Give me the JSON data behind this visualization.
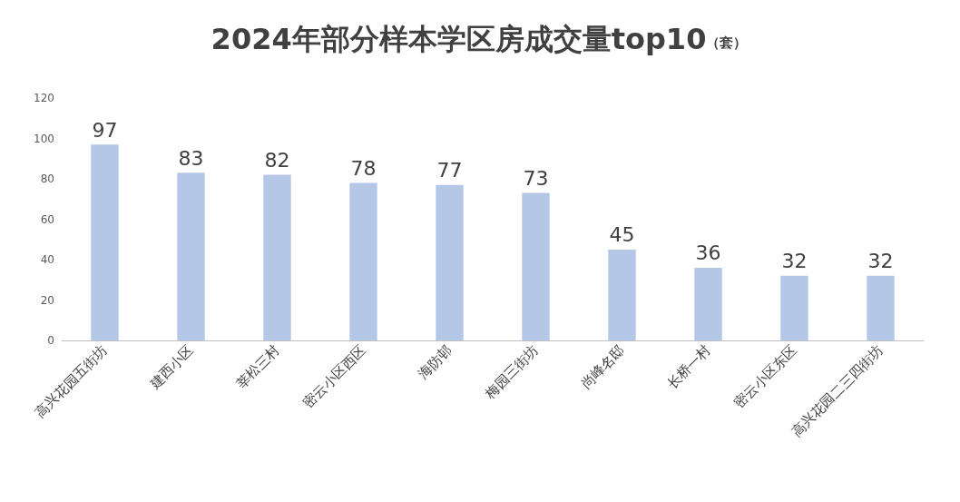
{
  "chart_data": {
    "type": "bar",
    "title": "2024年部分样本学区房成交量top10",
    "subtitle": "（套）",
    "categories": [
      "高兴花园五街坊",
      "建西小区",
      "莘松三村",
      "密云小区西区",
      "海防邨",
      "梅园三街坊",
      "尚峰名邸",
      "长桥一村",
      "密云小区东区",
      "高兴花园二三四街坊"
    ],
    "values": [
      97,
      83,
      82,
      78,
      77,
      73,
      45,
      36,
      32,
      32
    ],
    "color": "#b4c7e7",
    "ylim": [
      0,
      120
    ],
    "yticks": [
      0,
      20,
      40,
      60,
      80,
      100,
      120
    ],
    "grid": false,
    "data_labels": true
  }
}
